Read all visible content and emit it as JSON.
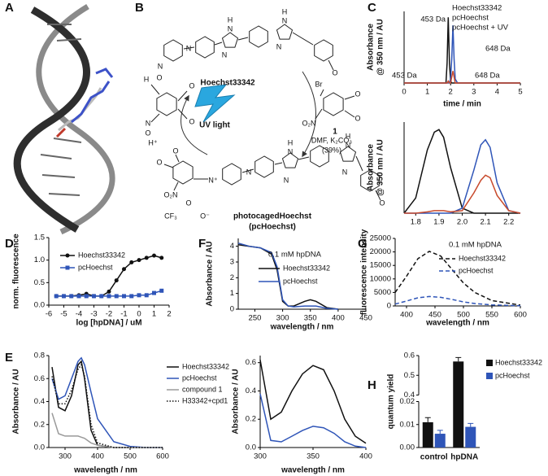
{
  "figure": {
    "panel_labels": [
      "A",
      "B",
      "C",
      "D",
      "E",
      "F",
      "G",
      "H"
    ],
    "scheme": {
      "labels": [
        "N",
        "N",
        "H",
        "N",
        "N",
        "H",
        "N",
        "N",
        "O",
        "Hoechst33342",
        "Br",
        "O₂N",
        "O",
        "O",
        "1",
        "DMF, K₂CO₃",
        "(39%)",
        "H",
        "O",
        "O",
        "O",
        "N",
        "O",
        "H⁺",
        "UV light",
        "O",
        "O",
        "O₂N",
        "N⁺",
        "N",
        "H",
        "N",
        "N",
        "H",
        "N",
        "N",
        "O",
        "CF₃",
        "O",
        "O⁻",
        "photocagedHoechst",
        "(pcHoechst)"
      ]
    }
  },
  "chart_data": [
    {
      "type": "line",
      "ylabel": [
        "Absorbance",
        "@ 350 nm / AU"
      ],
      "xlabel": "time / min",
      "x": [
        0,
        1.5,
        1.8,
        1.85,
        1.9,
        1.95,
        2.0,
        2.05,
        2.1,
        2.15,
        2.2,
        2.3,
        3,
        5
      ],
      "xlim": [
        0,
        5
      ],
      "xticks": [
        0,
        1,
        2,
        3,
        4,
        5
      ],
      "ylim": [
        0,
        0.36
      ],
      "series": [
        {
          "name": "Hoechst33342",
          "color": "#111111",
          "values": [
            0,
            0,
            0,
            0.1,
            0.33,
            0.1,
            0.01,
            0,
            0,
            0,
            0,
            0,
            0,
            0
          ]
        },
        {
          "name": "pcHoechst",
          "color": "#2f55b8",
          "values": [
            0,
            0,
            0,
            0,
            0,
            0,
            0.02,
            0.12,
            0.29,
            0.12,
            0.02,
            0,
            0,
            0
          ]
        },
        {
          "name": "pcHoechst + UV",
          "color": "#c84a2c",
          "values": [
            0,
            0,
            0,
            0,
            0.01,
            0,
            0,
            0.03,
            0.06,
            0.03,
            0,
            0,
            0,
            0
          ]
        }
      ],
      "annotations": [
        {
          "text": "453 Da",
          "color": "#111111"
        },
        {
          "text": "648 Da",
          "color": "#2f55b8"
        },
        {
          "text": "453 Da",
          "color": "#c84a2c"
        },
        {
          "text": "648 Da",
          "color": "#c84a2c"
        }
      ]
    },
    {
      "type": "line",
      "ylabel": [
        "Absorbance",
        "@ 350 nm / AU"
      ],
      "x": [
        1.75,
        1.8,
        1.85,
        1.88,
        1.9,
        1.92,
        1.95,
        2.0,
        2.05,
        2.08,
        2.1,
        2.12,
        2.15,
        2.2,
        2.25
      ],
      "xlim": [
        1.75,
        2.25
      ],
      "xticks": [
        1.8,
        1.9,
        {
          "value": 2,
          "label": "2.0"
        },
        2.1,
        2.2
      ],
      "ylim": [
        0,
        0.36
      ],
      "series": [
        {
          "name": "Hoechst33342",
          "color": "#111111",
          "values": [
            0,
            0.06,
            0.25,
            0.32,
            0.33,
            0.3,
            0.18,
            0.02,
            0,
            0,
            0,
            0,
            0,
            0,
            0
          ]
        },
        {
          "name": "pcHoechst",
          "color": "#2f55b8",
          "values": [
            0,
            0,
            0,
            0,
            0,
            0,
            0,
            0.02,
            0.17,
            0.27,
            0.29,
            0.26,
            0.12,
            0.01,
            0
          ]
        },
        {
          "name": "pcHoechst + UV",
          "color": "#c84a2c",
          "values": [
            0,
            0,
            0.005,
            0.01,
            0.01,
            0.01,
            0.005,
            0.01,
            0.08,
            0.13,
            0.15,
            0.14,
            0.07,
            0.01,
            0
          ]
        }
      ]
    },
    {
      "type": "line",
      "ylabel": "norm. fluorescence",
      "xlabel": "log [hpDNA] / uM",
      "x": [
        -5.5,
        -5,
        -4.5,
        -4,
        -3.5,
        -3,
        -2.5,
        -2,
        -1.5,
        -1,
        -0.5,
        0,
        0.5,
        1,
        1.5
      ],
      "xlim": [
        -6,
        2
      ],
      "xticks": [
        -6,
        -5,
        -4,
        -3,
        -2,
        -1,
        0,
        1,
        2
      ],
      "ylim": [
        0,
        1.5
      ],
      "yticks": [
        {
          "value": 0,
          "label": "0.0"
        },
        0.5,
        {
          "value": 1,
          "label": "1.0"
        },
        1.5
      ],
      "series": [
        {
          "name": "Hoechst33342",
          "color": "#111111",
          "marker": "circle",
          "values": [
            0.2,
            0.2,
            0.2,
            0.22,
            0.25,
            0.2,
            0.2,
            0.3,
            0.55,
            0.8,
            0.95,
            1.0,
            1.05,
            1.1,
            1.05
          ]
        },
        {
          "name": "pcHoechst",
          "color": "#2f55b8",
          "marker": "square",
          "values": [
            0.2,
            0.2,
            0.2,
            0.2,
            0.2,
            0.2,
            0.2,
            0.2,
            0.2,
            0.2,
            0.2,
            0.22,
            0.22,
            0.27,
            0.32
          ]
        }
      ]
    },
    {
      "type": "line",
      "ylabel": "Absorbance / AU",
      "xlabel": "wavelength / nm",
      "x": [
        260,
        280,
        300,
        320,
        340,
        350,
        360,
        380,
        400,
        450,
        500,
        550,
        600
      ],
      "xlim": [
        250,
        600
      ],
      "xticks": [
        300,
        400,
        500,
        600
      ],
      "ylim": [
        0,
        0.8
      ],
      "yticks": [
        {
          "value": 0,
          "label": "0.0"
        },
        0.2,
        0.4,
        0.6,
        0.8
      ],
      "series": [
        {
          "name": "Hoechst33342",
          "color": "#111111",
          "values": [
            0.7,
            0.35,
            0.32,
            0.45,
            0.72,
            0.75,
            0.6,
            0.15,
            0.02,
            0,
            0,
            0,
            0
          ]
        },
        {
          "name": "pcHoechst",
          "color": "#2f55b8",
          "values": [
            0.6,
            0.42,
            0.45,
            0.6,
            0.75,
            0.78,
            0.72,
            0.48,
            0.25,
            0.05,
            0.01,
            0,
            0
          ]
        },
        {
          "name": "compound 1",
          "color": "#9a9a9a",
          "values": [
            0.3,
            0.12,
            0.1,
            0.1,
            0.1,
            0.09,
            0.08,
            0.04,
            0.02,
            0,
            0,
            0,
            0
          ]
        },
        {
          "name": "H33342+cpd1",
          "color": "#111111",
          "dash": "dotted",
          "values": [
            0.62,
            0.38,
            0.38,
            0.5,
            0.68,
            0.72,
            0.62,
            0.2,
            0.04,
            0,
            0,
            0,
            0
          ]
        }
      ]
    },
    {
      "type": "line",
      "ylabel": "Absorbance / AU",
      "xlabel": "wavelength / nm",
      "x": [
        220,
        240,
        260,
        280,
        290,
        300,
        310,
        320,
        340,
        350,
        360,
        380,
        400
      ],
      "xlim": [
        220,
        450
      ],
      "xticks": [
        250,
        300,
        350,
        400,
        450
      ],
      "ylim": [
        0,
        4.5
      ],
      "yticks": [
        0,
        1,
        2,
        3,
        4
      ],
      "series": [
        {
          "name": "Hoechst33342",
          "color": "#111111",
          "values": [
            4.1,
            4.0,
            3.9,
            3.5,
            2.5,
            0.5,
            0.2,
            0.2,
            0.5,
            0.6,
            0.5,
            0.1,
            0
          ]
        },
        {
          "name": "pcHoechst",
          "color": "#2f55b8",
          "values": [
            4.2,
            4.0,
            3.9,
            3.6,
            2.7,
            0.6,
            0.2,
            0.15,
            0.2,
            0.2,
            0.2,
            0.05,
            0
          ]
        }
      ],
      "annotations": [
        {
          "text": "0.1 mM hpDNA"
        }
      ]
    },
    {
      "type": "line",
      "ylabel": "Absorbance / AU",
      "xlabel": "wavelength / nm",
      "x": [
        300,
        310,
        320,
        330,
        340,
        350,
        360,
        370,
        380,
        390,
        400
      ],
      "xlim": [
        300,
        400
      ],
      "xticks": [
        300,
        350,
        400
      ],
      "ylim": [
        0,
        0.65
      ],
      "yticks": [
        {
          "value": 0,
          "label": "0.0"
        },
        0.2,
        0.4,
        0.6
      ],
      "series": [
        {
          "name": "Hoechst33342",
          "color": "#111111",
          "values": [
            0.62,
            0.2,
            0.25,
            0.4,
            0.52,
            0.58,
            0.55,
            0.4,
            0.2,
            0.08,
            0.03
          ]
        },
        {
          "name": "pcHoechst",
          "color": "#2f55b8",
          "values": [
            0.38,
            0.05,
            0.04,
            0.08,
            0.12,
            0.15,
            0.14,
            0.1,
            0.04,
            0.01,
            0
          ]
        }
      ]
    },
    {
      "type": "line",
      "ylabel": "fluorescence intensity",
      "xlabel": "wavelength / nm",
      "x": [
        380,
        400,
        420,
        440,
        460,
        480,
        500,
        520,
        550,
        600
      ],
      "xlim": [
        380,
        600
      ],
      "xticks": [
        400,
        450,
        500,
        550,
        600
      ],
      "ylim": [
        0,
        25000
      ],
      "yticks": [
        0,
        5000,
        10000,
        15000,
        20000,
        25000
      ],
      "series": [
        {
          "name": "Hoechst33342",
          "color": "#111111",
          "dash": "dashed",
          "values": [
            5000,
            11000,
            17500,
            20200,
            18500,
            13500,
            8500,
            5000,
            2000,
            300
          ]
        },
        {
          "name": "pcHoechst",
          "color": "#2f55b8",
          "dash": "dashed",
          "values": [
            700,
            1800,
            3000,
            3500,
            3200,
            2400,
            1500,
            900,
            400,
            50
          ]
        }
      ],
      "annotations": [
        {
          "text": "0.1 mM hpDNA"
        }
      ]
    },
    {
      "type": "bar",
      "ylabel": "quantum yield",
      "categories": [
        "control",
        "hpDNA"
      ],
      "ylim": [
        0,
        0.6
      ],
      "axis_break": [
        0.02,
        0.4
      ],
      "yticks": [
        {
          "value": 0,
          "label": "0.00"
        },
        0.01,
        0.02,
        0.4,
        0.5,
        0.6
      ],
      "series": [
        {
          "name": "Hoechst33342",
          "color": "#111111",
          "values": [
            0.011,
            0.57
          ],
          "errors": [
            0.002,
            0.02
          ]
        },
        {
          "name": "pcHoechst",
          "color": "#2f55b8",
          "values": [
            0.006,
            0.009
          ],
          "errors": [
            0.0015,
            0.0015
          ]
        }
      ]
    }
  ]
}
